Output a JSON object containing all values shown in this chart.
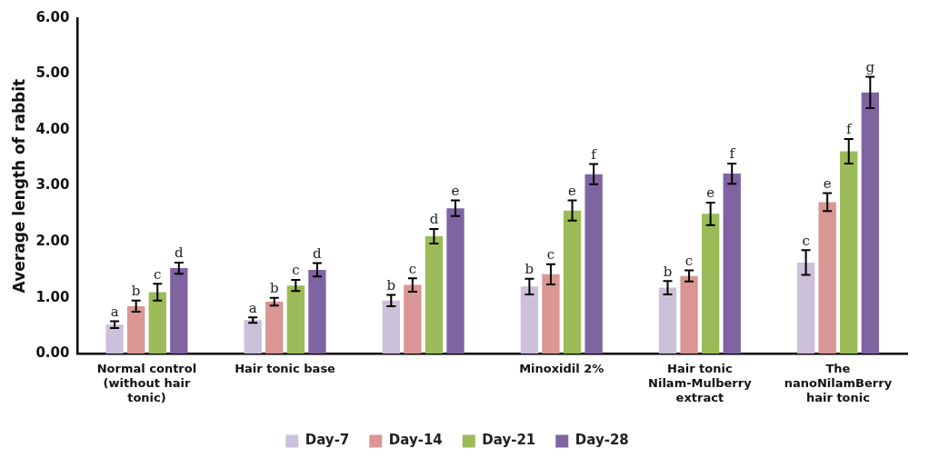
{
  "chart_data": {
    "type": "bar",
    "ylabel": "Average length of rabbit",
    "categories": [
      "Normal control (without hair tonic)",
      "Hair tonic base",
      null,
      "Minoxidil 2%",
      "Hair tonic Nilam-Mulberry extract",
      "The nanoNilamBerry hair tonic"
    ],
    "series": [
      {
        "name": "Day-7",
        "color": "#ccc0da",
        "values": [
          0.52,
          0.6,
          0.95,
          1.2,
          1.18,
          1.63
        ],
        "errors": [
          0.06,
          0.05,
          0.1,
          0.14,
          0.12,
          0.22
        ],
        "value_labels": [
          "a",
          "a",
          "b",
          "b",
          "b",
          "c"
        ]
      },
      {
        "name": "Day-14",
        "color": "#da9694",
        "values": [
          0.85,
          0.93,
          1.23,
          1.42,
          1.39,
          2.71
        ],
        "errors": [
          0.1,
          0.07,
          0.12,
          0.18,
          0.1,
          0.16
        ],
        "value_labels": [
          "b",
          "b",
          "c",
          "c",
          "c",
          "e"
        ]
      },
      {
        "name": "Day-21",
        "color": "#9bbb59",
        "values": [
          1.1,
          1.22,
          2.1,
          2.56,
          2.5,
          3.62
        ],
        "errors": [
          0.15,
          0.1,
          0.13,
          0.18,
          0.2,
          0.22
        ],
        "value_labels": [
          "c",
          "c",
          "d",
          "e",
          "e",
          "f"
        ]
      },
      {
        "name": "Day-28",
        "color": "#8064a2",
        "values": [
          1.53,
          1.5,
          2.6,
          3.21,
          3.22,
          4.67
        ],
        "errors": [
          0.1,
          0.12,
          0.14,
          0.18,
          0.18,
          0.28
        ],
        "value_labels": [
          "d",
          "d",
          "e",
          "f",
          "f",
          "g"
        ]
      }
    ],
    "ylim": [
      0,
      6
    ],
    "yticks": [
      {
        "value": 0,
        "label": "0.00"
      },
      {
        "value": 1,
        "label": "1.00"
      },
      {
        "value": 2,
        "label": "2.00"
      },
      {
        "value": 3,
        "label": "3.00"
      },
      {
        "value": 4,
        "label": "4.00"
      },
      {
        "value": 5,
        "label": "5.00"
      },
      {
        "value": 6,
        "label": "6.00"
      }
    ],
    "grid": false,
    "legend": "bottom"
  }
}
